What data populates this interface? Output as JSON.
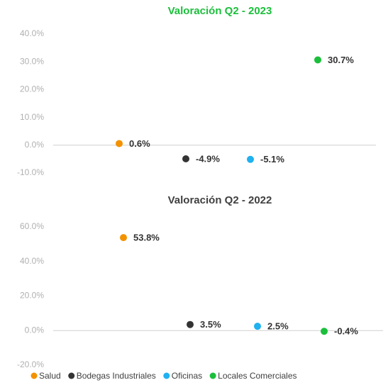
{
  "chart_data": [
    {
      "type": "scatter",
      "title": "Valoración Q2 - 2023",
      "title_color": "#1bbf3b",
      "categories": [
        "Salud",
        "Bodegas Industriales",
        "Oficinas",
        "Locales Comerciales"
      ],
      "colors": [
        "#f39200",
        "#333333",
        "#1fb1f0",
        "#1bbf3b"
      ],
      "values": [
        0.6,
        -4.9,
        -5.1,
        30.7
      ],
      "value_labels": [
        "0.6%",
        "-4.9%",
        "-5.1%",
        "30.7%"
      ],
      "ylim": [
        -10,
        40
      ],
      "yticks": [
        {
          "value": -10,
          "label": "-10.0%"
        },
        {
          "value": 0,
          "label": "0.0%"
        },
        {
          "value": 10,
          "label": "10.0%"
        },
        {
          "value": 20,
          "label": "20.0%"
        },
        {
          "value": 30,
          "label": "30.0%"
        },
        {
          "value": 40,
          "label": "40.0%"
        }
      ]
    },
    {
      "type": "scatter",
      "title": "Valoración Q2 - 2022",
      "title_color": "#404040",
      "categories": [
        "Salud",
        "Bodegas Industriales",
        "Oficinas",
        "Locales Comerciales"
      ],
      "colors": [
        "#f39200",
        "#333333",
        "#1fb1f0",
        "#1bbf3b"
      ],
      "values": [
        53.8,
        3.5,
        2.5,
        -0.4
      ],
      "value_labels": [
        "53.8%",
        "3.5%",
        "2.5%",
        "-0.4%"
      ],
      "ylim": [
        -20,
        60
      ],
      "yticks": [
        {
          "value": -20,
          "label": "-20.0%"
        },
        {
          "value": 0,
          "label": "0.0%"
        },
        {
          "value": 20,
          "label": "20.0%"
        },
        {
          "value": 40,
          "label": "40.0%"
        },
        {
          "value": 60,
          "label": "60.0%"
        }
      ],
      "legend": "bottom"
    }
  ]
}
